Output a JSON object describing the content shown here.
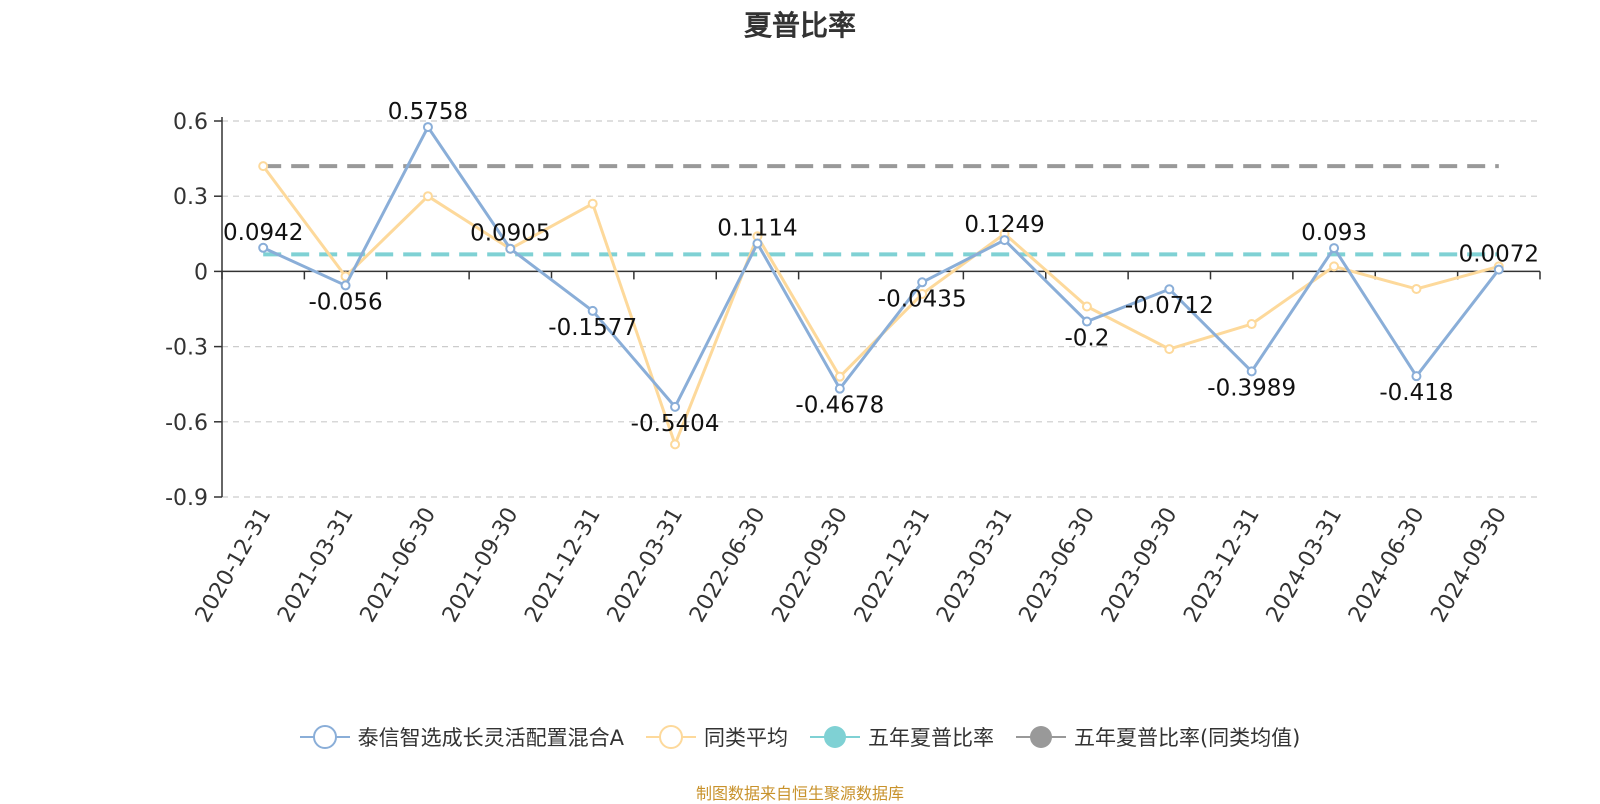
{
  "chart_data": {
    "type": "line",
    "title": "夏普比率",
    "categories": [
      "2020-12-31",
      "2021-03-31",
      "2021-06-30",
      "2021-09-30",
      "2021-12-31",
      "2022-03-31",
      "2022-06-30",
      "2022-09-30",
      "2022-12-31",
      "2023-03-31",
      "2023-06-30",
      "2023-09-30",
      "2023-12-31",
      "2024-03-31",
      "2024-06-30",
      "2024-09-30"
    ],
    "y_ticks": [
      "0.6",
      "0.3",
      "0",
      "-0.3",
      "-0.6",
      "-0.9"
    ],
    "ylim": [
      -0.9,
      0.6
    ],
    "grid": true,
    "legend_position": "bottom",
    "series": [
      {
        "name": "泰信智选成长灵活配置混合A",
        "color": "#8aaed8",
        "values": [
          0.0942,
          -0.056,
          0.5758,
          0.0905,
          -0.1577,
          -0.5404,
          0.1114,
          -0.4678,
          -0.0435,
          0.1249,
          -0.2,
          -0.0712,
          -0.3989,
          0.093,
          -0.418,
          0.0072
        ],
        "labels": [
          "0.0942",
          "-0.056",
          "0.5758",
          "0.0905",
          "-0.1577",
          "-0.5404",
          "0.1114",
          "-0.4678",
          "-0.0435",
          "0.1249",
          "-0.2",
          "-0.0712",
          "-0.3989",
          "0.093",
          "-0.418",
          "0.0072"
        ]
      },
      {
        "name": "同类平均",
        "color": "#fdd99b",
        "values": [
          0.42,
          -0.02,
          0.3,
          0.09,
          0.27,
          -0.69,
          0.14,
          -0.42,
          -0.09,
          0.15,
          -0.14,
          -0.31,
          -0.21,
          0.02,
          -0.07,
          0.02
        ]
      },
      {
        "name": "五年夏普比率",
        "color": "#7fd1d4",
        "value": 0.068
      },
      {
        "name": "五年夏普比率(同类均值)",
        "color": "#999999",
        "value": 0.42
      }
    ]
  },
  "source_note": "制图数据来自恒生聚源数据库"
}
